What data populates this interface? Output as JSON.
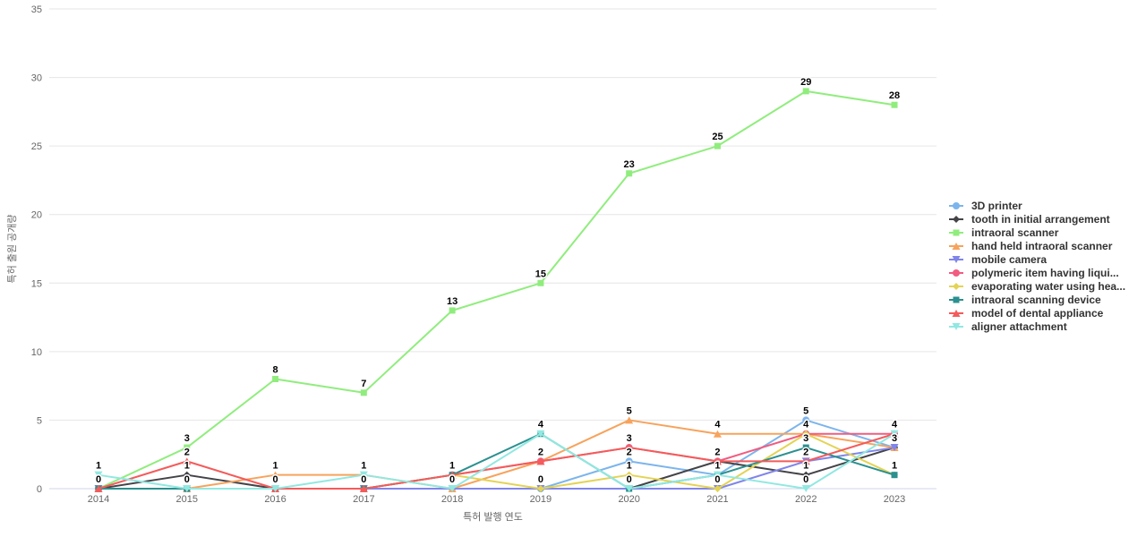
{
  "chart_data": {
    "type": "line",
    "x": [
      2014,
      2015,
      2016,
      2017,
      2018,
      2019,
      2020,
      2021,
      2022,
      2023
    ],
    "xlabel": "특허 발행 연도",
    "ylabel": "특허 출원 공개량",
    "ylim": [
      0,
      35
    ],
    "yticks": [
      0,
      5,
      10,
      15,
      20,
      25,
      30,
      35
    ],
    "grid": true,
    "legend_position": "right",
    "series": [
      {
        "name": "3D printer",
        "color": "#7cb5ec",
        "marker": "circle",
        "values": [
          0,
          0,
          0,
          0,
          0,
          0,
          2,
          1,
          5,
          3
        ]
      },
      {
        "name": "tooth in initial arrangement",
        "color": "#434348",
        "marker": "diamond",
        "values": [
          0,
          1,
          0,
          0,
          0,
          0,
          0,
          2,
          1,
          3
        ]
      },
      {
        "name": "intraoral scanner",
        "color": "#90ed7d",
        "marker": "square",
        "values": [
          0,
          3,
          8,
          7,
          13,
          15,
          23,
          25,
          29,
          28
        ]
      },
      {
        "name": "hand held intraoral scanner",
        "color": "#f7a35c",
        "marker": "triangle",
        "values": [
          0,
          0,
          1,
          1,
          0,
          2,
          5,
          4,
          4,
          3
        ]
      },
      {
        "name": "mobile camera",
        "color": "#8085e9",
        "marker": "triangle-down",
        "values": [
          0,
          0,
          0,
          0,
          0,
          0,
          0,
          0,
          2,
          3
        ]
      },
      {
        "name": "polymeric item having liqui...",
        "color": "#f15c80",
        "marker": "circle",
        "values": [
          0,
          0,
          0,
          0,
          1,
          2,
          3,
          2,
          4,
          4
        ]
      },
      {
        "name": "evaporating water using hea...",
        "color": "#e4d354",
        "marker": "diamond",
        "values": [
          0,
          0,
          0,
          0,
          1,
          0,
          1,
          0,
          4,
          1
        ]
      },
      {
        "name": "intraoral scanning device",
        "color": "#2b908f",
        "marker": "square",
        "values": [
          0,
          0,
          0,
          0,
          1,
          4,
          0,
          1,
          3,
          1
        ]
      },
      {
        "name": "model of dental appliance",
        "color": "#f45b5b",
        "marker": "triangle",
        "values": [
          0,
          2,
          0,
          0,
          1,
          2,
          3,
          2,
          2,
          4
        ]
      },
      {
        "name": "aligner attachment",
        "color": "#91e8e1",
        "marker": "triangle-down",
        "values": [
          1,
          0,
          0,
          1,
          0,
          4,
          0,
          1,
          0,
          4
        ]
      }
    ]
  },
  "colors": {
    "background": "#ffffff",
    "grid": "#e6e6e6",
    "axis_line": "#ccd6eb",
    "tick_text": "#666666",
    "legend_text": "#333333",
    "data_label_text": "#000000"
  }
}
